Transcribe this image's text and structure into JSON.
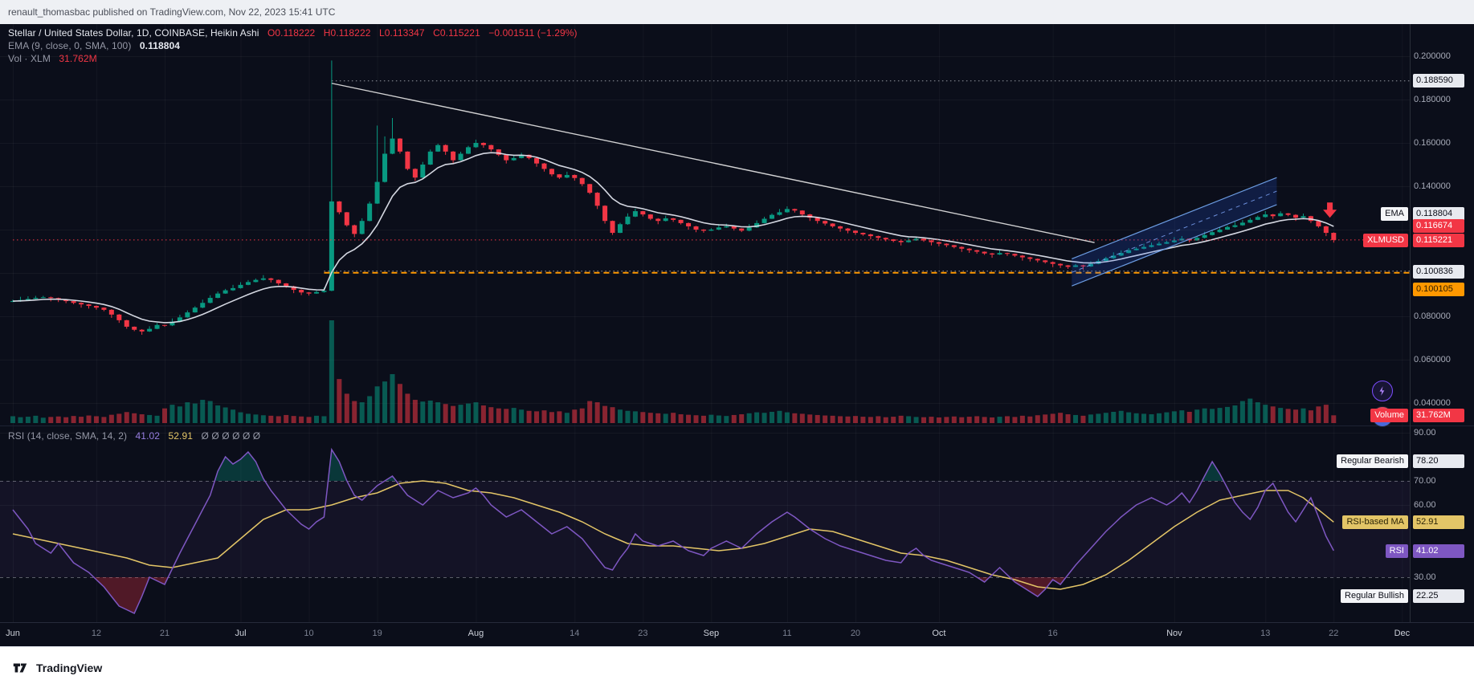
{
  "header": {
    "text": "renault_thomasbac published on TradingView.com, Nov 22, 2023 15:41 UTC"
  },
  "footer": {
    "brand": "TradingView"
  },
  "legend": {
    "title": "Stellar / United States Dollar, 1D, COINBASE, Heikin Ashi",
    "o": "O0.118222",
    "h": "H0.118222",
    "l": "L0.113347",
    "c": "C0.115221",
    "change": "−0.001511 (−1.29%)",
    "ema_label": "EMA (9, close, 0, SMA, 100)",
    "ema_value": "0.118804",
    "vol_label": "Vol · XLM",
    "vol_value": "31.762M"
  },
  "rsi_legend": {
    "label": "RSI (14, close, SMA, 14, 2)",
    "rsi_value": "41.02",
    "ma_value": "52.91",
    "placeholders": "Ø Ø Ø Ø Ø Ø"
  },
  "labels": {
    "high_level": "0.188590",
    "ema_tag": "EMA",
    "ema_value": "0.118804",
    "secondary_value": "0.116674",
    "symbol_tag": "XLMUSD",
    "symbol_value": "0.115221",
    "support_white": "0.100836",
    "support_orange": "0.100105",
    "volume_tag": "Volume",
    "volume_value": "31.762M",
    "bearish_tag": "Regular Bearish",
    "bearish_value": "78.20",
    "ma_tag": "RSI-based MA",
    "ma_value": "52.91",
    "rsi_tag": "RSI",
    "rsi_value": "41.02",
    "bullish_tag": "Regular Bullish",
    "bullish_value": "22.25"
  },
  "chart_data": {
    "type": "candlestick",
    "style": "Heikin Ashi",
    "symbol": "XLMUSD",
    "exchange": "COINBASE",
    "interval": "1D",
    "title": "Stellar / United States Dollar, 1D, COINBASE, Heikin Ashi",
    "ylim": [
      0.04,
      0.2
    ],
    "start_date": "2023-06-01",
    "end_date": "2023-11-22",
    "ohlc_last": {
      "open": 0.118222,
      "high": 0.118222,
      "low": 0.113347,
      "close": 0.115221,
      "change": -0.001511,
      "change_pct": -1.29
    },
    "ema_last": 0.118804,
    "volume_last_m": 31.762,
    "rsi_last": 41.02,
    "rsi_ma_last": 52.91,
    "colors": {
      "up": "#089981",
      "down": "#f23645",
      "ema": "#dfe3ec",
      "rsi": "#7e57c2",
      "rsi_ma": "#e3c567",
      "trendline": "#e8e8e8",
      "channel_stroke": "#6b9be0",
      "channel_fill": "rgba(41,98,255,0.18)",
      "level_orange": "#ff9800",
      "current_price": "#f23645"
    },
    "closes": [
      0.087,
      0.0875,
      0.088,
      0.0885,
      0.0888,
      0.0884,
      0.0878,
      0.087,
      0.0862,
      0.0855,
      0.0848,
      0.084,
      0.083,
      0.0808,
      0.0782,
      0.0752,
      0.0738,
      0.073,
      0.0742,
      0.076,
      0.0758,
      0.0775,
      0.0795,
      0.0818,
      0.084,
      0.0862,
      0.0885,
      0.0905,
      0.092,
      0.093,
      0.0945,
      0.0958,
      0.0968,
      0.0975,
      0.0968,
      0.0952,
      0.0938,
      0.0922,
      0.091,
      0.0905,
      0.0912,
      0.0918,
      0.133,
      0.128,
      0.122,
      0.118,
      0.124,
      0.132,
      0.142,
      0.155,
      0.162,
      0.156,
      0.148,
      0.144,
      0.15,
      0.156,
      0.159,
      0.156,
      0.152,
      0.155,
      0.158,
      0.16,
      0.159,
      0.157,
      0.1545,
      0.152,
      0.153,
      0.1545,
      0.153,
      0.1505,
      0.148,
      0.1455,
      0.144,
      0.1452,
      0.1438,
      0.141,
      0.137,
      0.131,
      0.124,
      0.1185,
      0.1225,
      0.126,
      0.1285,
      0.127,
      0.125,
      0.124,
      0.1252,
      0.1245,
      0.123,
      0.1215,
      0.12,
      0.1195,
      0.12,
      0.121,
      0.1215,
      0.1205,
      0.1195,
      0.121,
      0.123,
      0.125,
      0.1268,
      0.128,
      0.1295,
      0.1288,
      0.127,
      0.1255,
      0.124,
      0.1228,
      0.1215,
      0.1205,
      0.1195,
      0.1185,
      0.1178,
      0.117,
      0.1162,
      0.1155,
      0.1148,
      0.1142,
      0.115,
      0.1158,
      0.115,
      0.1142,
      0.1135,
      0.1128,
      0.112,
      0.1112,
      0.1105,
      0.1098,
      0.109,
      0.1085,
      0.1092,
      0.1088,
      0.108,
      0.1072,
      0.1065,
      0.1058,
      0.105,
      0.1042,
      0.1035,
      0.1028,
      0.1035,
      0.103,
      0.1042,
      0.1055,
      0.1068,
      0.108,
      0.1092,
      0.1105,
      0.1112,
      0.112,
      0.1128,
      0.1135,
      0.1142,
      0.115,
      0.1158,
      0.115,
      0.1162,
      0.1175,
      0.1188,
      0.12,
      0.1212,
      0.122,
      0.1232,
      0.1245,
      0.1258,
      0.127,
      0.1262,
      0.1275,
      0.1268,
      0.1255,
      0.1262,
      0.124,
      0.1215,
      0.1185,
      0.115221
    ],
    "volumes_m": [
      28,
      24,
      26,
      30,
      22,
      25,
      27,
      24,
      29,
      26,
      31,
      28,
      25,
      34,
      38,
      45,
      40,
      36,
      33,
      30,
      60,
      75,
      68,
      85,
      80,
      95,
      90,
      72,
      64,
      55,
      44,
      38,
      35,
      32,
      30,
      28,
      33,
      29,
      27,
      25,
      30,
      28,
      420,
      180,
      120,
      90,
      85,
      110,
      150,
      170,
      200,
      160,
      120,
      95,
      88,
      92,
      85,
      78,
      70,
      75,
      80,
      85,
      72,
      65,
      60,
      58,
      62,
      55,
      50,
      48,
      52,
      45,
      48,
      42,
      55,
      60,
      90,
      85,
      70,
      65,
      55,
      50,
      48,
      45,
      42,
      40,
      38,
      42,
      36,
      34,
      32,
      30,
      34,
      31,
      29,
      33,
      36,
      40,
      44,
      42,
      46,
      50,
      44,
      40,
      38,
      35,
      33,
      31,
      30,
      28,
      27,
      29,
      26,
      25,
      28,
      24,
      26,
      30,
      28,
      25,
      24,
      26,
      23,
      25,
      27,
      24,
      26,
      28,
      25,
      23,
      26,
      28,
      25,
      30,
      27,
      32,
      35,
      38,
      42,
      36,
      33,
      30,
      35,
      38,
      42,
      46,
      50,
      44,
      40,
      38,
      36,
      40,
      44,
      48,
      52,
      46,
      55,
      60,
      58,
      62,
      66,
      72,
      90,
      100,
      85,
      75,
      68,
      62,
      58,
      55,
      60,
      52,
      68,
      75,
      31.762
    ],
    "wick_overrides": {
      "42": {
        "high": 0.198
      },
      "48": {
        "high": 0.168
      },
      "49": {
        "high": 0.163
      },
      "50": {
        "high": 0.1715
      }
    },
    "levels": [
      {
        "price": 0.115221,
        "color": "#f23645",
        "style": "dotted",
        "label": "0.115221",
        "from_day": 0,
        "width": 1
      },
      {
        "price": 0.100836,
        "color": "#9598a1",
        "style": "dotted",
        "label": "0.100836",
        "from_day": 41,
        "width": 1
      },
      {
        "price": 0.100105,
        "color": "#ff9800",
        "style": "dashed",
        "label": "0.100105",
        "from_day": 41,
        "width": 2
      },
      {
        "price": 0.18859,
        "color": "#9598a1",
        "style": "dotted",
        "label": "0.188590",
        "from_day": 42,
        "width": 1
      }
    ],
    "trendline": {
      "from_day": 42,
      "from_price": 0.1875,
      "to_day": 142.5,
      "to_price": 0.114
    },
    "channel": {
      "from_day": 139.5,
      "from_price": 0.1065,
      "to_day": 166.5,
      "to_price": 0.144,
      "offset": -0.0125
    },
    "arrow_marker": {
      "day": 173.5,
      "price": 0.1325,
      "direction": "down",
      "color": "#f23645"
    },
    "price_ticks": [
      0.2,
      0.18,
      0.16,
      0.14,
      0.08,
      0.06,
      0.04
    ],
    "rsi_ticks": [
      90,
      70,
      60,
      30
    ],
    "rsi_band": [
      30,
      70
    ],
    "rsi_points": [
      [
        0,
        58
      ],
      [
        2,
        50
      ],
      [
        3,
        44
      ],
      [
        5,
        40
      ],
      [
        6,
        44
      ],
      [
        8,
        36
      ],
      [
        10,
        32
      ],
      [
        12,
        26
      ],
      [
        14,
        18
      ],
      [
        16,
        15
      ],
      [
        17,
        22
      ],
      [
        18,
        30
      ],
      [
        20,
        27
      ],
      [
        22,
        40
      ],
      [
        24,
        52
      ],
      [
        26,
        64
      ],
      [
        27,
        74
      ],
      [
        28,
        80
      ],
      [
        29,
        77
      ],
      [
        30,
        79
      ],
      [
        31,
        82
      ],
      [
        32,
        78
      ],
      [
        33,
        71
      ],
      [
        34,
        66
      ],
      [
        36,
        58
      ],
      [
        38,
        52
      ],
      [
        39,
        50
      ],
      [
        40,
        53
      ],
      [
        41,
        55
      ],
      [
        42,
        83
      ],
      [
        43,
        78
      ],
      [
        44,
        70
      ],
      [
        45,
        64
      ],
      [
        46,
        62
      ],
      [
        48,
        68
      ],
      [
        50,
        72
      ],
      [
        52,
        64
      ],
      [
        54,
        60
      ],
      [
        56,
        66
      ],
      [
        58,
        63
      ],
      [
        60,
        65
      ],
      [
        61,
        67
      ],
      [
        62,
        64
      ],
      [
        63,
        60
      ],
      [
        65,
        55
      ],
      [
        67,
        58
      ],
      [
        69,
        53
      ],
      [
        71,
        48
      ],
      [
        73,
        51
      ],
      [
        75,
        46
      ],
      [
        76,
        42
      ],
      [
        77,
        38
      ],
      [
        78,
        34
      ],
      [
        79,
        33
      ],
      [
        80,
        38
      ],
      [
        81,
        42
      ],
      [
        82,
        48
      ],
      [
        83,
        45
      ],
      [
        85,
        43
      ],
      [
        87,
        45
      ],
      [
        89,
        41
      ],
      [
        91,
        39
      ],
      [
        92,
        42
      ],
      [
        94,
        45
      ],
      [
        96,
        42
      ],
      [
        98,
        48
      ],
      [
        100,
        53
      ],
      [
        102,
        57
      ],
      [
        103,
        55
      ],
      [
        105,
        50
      ],
      [
        107,
        46
      ],
      [
        109,
        43
      ],
      [
        111,
        41
      ],
      [
        113,
        39
      ],
      [
        115,
        37
      ],
      [
        117,
        36
      ],
      [
        118,
        40
      ],
      [
        119,
        42
      ],
      [
        120,
        39
      ],
      [
        121,
        37
      ],
      [
        122,
        36
      ],
      [
        124,
        34
      ],
      [
        126,
        32
      ],
      [
        127,
        30
      ],
      [
        128,
        28
      ],
      [
        129,
        31
      ],
      [
        130,
        34
      ],
      [
        131,
        31
      ],
      [
        132,
        28
      ],
      [
        133,
        26
      ],
      [
        134,
        24
      ],
      [
        135,
        22
      ],
      [
        136,
        25
      ],
      [
        137,
        29
      ],
      [
        138,
        27
      ],
      [
        139,
        31
      ],
      [
        140,
        35
      ],
      [
        142,
        42
      ],
      [
        144,
        49
      ],
      [
        146,
        55
      ],
      [
        148,
        60
      ],
      [
        150,
        63
      ],
      [
        152,
        60
      ],
      [
        153,
        62
      ],
      [
        154,
        65
      ],
      [
        155,
        61
      ],
      [
        156,
        66
      ],
      [
        157,
        72
      ],
      [
        158,
        78
      ],
      [
        159,
        73
      ],
      [
        160,
        67
      ],
      [
        161,
        61
      ],
      [
        162,
        57
      ],
      [
        163,
        54
      ],
      [
        164,
        59
      ],
      [
        165,
        66
      ],
      [
        166,
        69
      ],
      [
        167,
        63
      ],
      [
        168,
        57
      ],
      [
        169,
        53
      ],
      [
        170,
        58
      ],
      [
        171,
        63
      ],
      [
        172,
        55
      ],
      [
        173,
        47
      ],
      [
        174,
        41.02
      ]
    ],
    "rsi_ma_points": [
      [
        0,
        48
      ],
      [
        3,
        46
      ],
      [
        6,
        44
      ],
      [
        9,
        42
      ],
      [
        12,
        40
      ],
      [
        15,
        38
      ],
      [
        18,
        35
      ],
      [
        21,
        34
      ],
      [
        24,
        36
      ],
      [
        27,
        38
      ],
      [
        30,
        46
      ],
      [
        33,
        54
      ],
      [
        36,
        58
      ],
      [
        39,
        58
      ],
      [
        42,
        60
      ],
      [
        45,
        63
      ],
      [
        48,
        65
      ],
      [
        51,
        69
      ],
      [
        54,
        70
      ],
      [
        57,
        69
      ],
      [
        60,
        66
      ],
      [
        63,
        65
      ],
      [
        66,
        63
      ],
      [
        69,
        60
      ],
      [
        72,
        57
      ],
      [
        75,
        53
      ],
      [
        78,
        48
      ],
      [
        81,
        44
      ],
      [
        84,
        43
      ],
      [
        87,
        43
      ],
      [
        90,
        42
      ],
      [
        93,
        41
      ],
      [
        96,
        42
      ],
      [
        99,
        44
      ],
      [
        102,
        47
      ],
      [
        105,
        50
      ],
      [
        108,
        49
      ],
      [
        111,
        46
      ],
      [
        114,
        43
      ],
      [
        117,
        40
      ],
      [
        120,
        39
      ],
      [
        123,
        37
      ],
      [
        126,
        34
      ],
      [
        129,
        31
      ],
      [
        132,
        29
      ],
      [
        135,
        26
      ],
      [
        138,
        25
      ],
      [
        141,
        27
      ],
      [
        144,
        31
      ],
      [
        147,
        37
      ],
      [
        150,
        44
      ],
      [
        153,
        51
      ],
      [
        156,
        57
      ],
      [
        159,
        62
      ],
      [
        162,
        64
      ],
      [
        165,
        66
      ],
      [
        168,
        66
      ],
      [
        170,
        63
      ],
      [
        172,
        58
      ],
      [
        174,
        52.91
      ]
    ],
    "time_axis": [
      [
        "Jun",
        0,
        1
      ],
      [
        "12",
        11,
        0
      ],
      [
        "21",
        20,
        0
      ],
      [
        "Jul",
        30,
        1
      ],
      [
        "10",
        39,
        0
      ],
      [
        "19",
        48,
        0
      ],
      [
        "Aug",
        61,
        1
      ],
      [
        "14",
        74,
        0
      ],
      [
        "23",
        83,
        0
      ],
      [
        "Sep",
        92,
        1
      ],
      [
        "11",
        102,
        0
      ],
      [
        "20",
        111,
        0
      ],
      [
        "Oct",
        122,
        1
      ],
      [
        "16",
        137,
        0
      ],
      [
        "Nov",
        153,
        1
      ],
      [
        "13",
        165,
        0
      ],
      [
        "22",
        174,
        0
      ],
      [
        "Dec",
        183,
        1
      ]
    ]
  }
}
